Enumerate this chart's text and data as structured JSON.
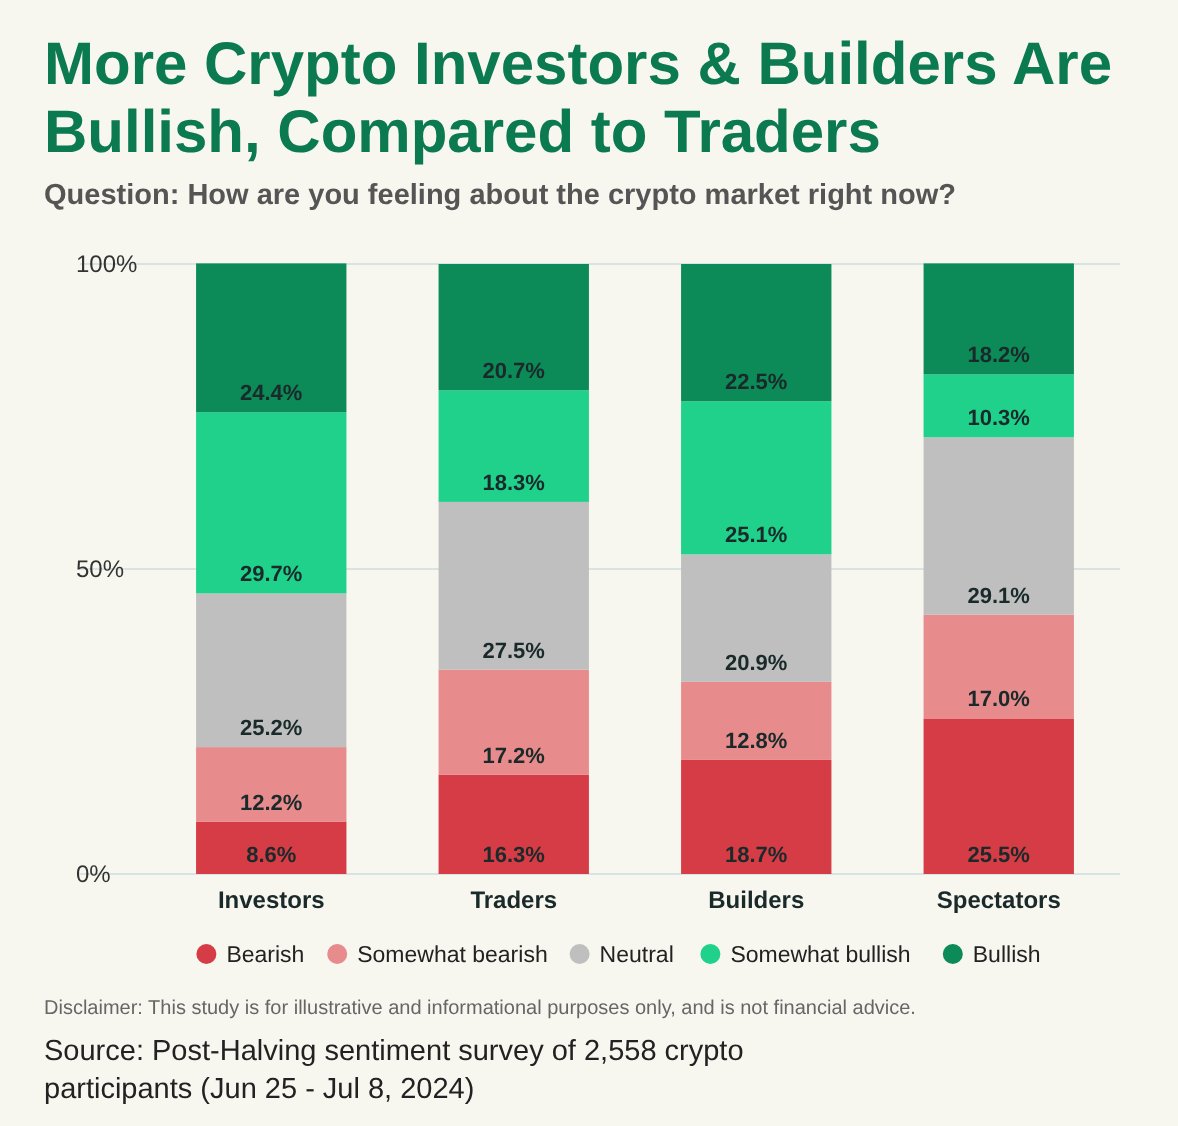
{
  "chart_data": {
    "type": "bar",
    "stacked": true,
    "title": "More Crypto Investors & Builders Are Bullish, Compared to Traders",
    "subtitle": "Question: How are you feeling about the crypto market right now?",
    "categories": [
      "Investors",
      "Traders",
      "Builders",
      "Spectators"
    ],
    "series": [
      {
        "name": "Bearish",
        "color": "#d63c46",
        "values": [
          8.6,
          16.3,
          18.7,
          25.5
        ],
        "value_labels": [
          "8.6%",
          "16.3%",
          "18.7%",
          "25.5%"
        ]
      },
      {
        "name": "Somewhat bearish",
        "color": "#e88b8d",
        "values": [
          12.2,
          17.2,
          12.8,
          17.0
        ],
        "value_labels": [
          "12.2%",
          "17.2%",
          "12.8%",
          "17.0%"
        ]
      },
      {
        "name": "Neutral",
        "color": "#bfbfbf",
        "values": [
          25.2,
          27.5,
          20.9,
          29.1
        ],
        "value_labels": [
          "25.2%",
          "27.5%",
          "20.9%",
          "29.1%"
        ]
      },
      {
        "name": "Somewhat bullish",
        "color": "#1fd18b",
        "values": [
          29.7,
          18.3,
          25.1,
          10.3
        ],
        "value_labels": [
          "29.7%",
          "18.3%",
          "25.1%",
          "10.3%"
        ]
      },
      {
        "name": "Bullish",
        "color": "#0c8a58",
        "values": [
          24.4,
          20.7,
          22.5,
          18.2
        ],
        "value_labels": [
          "24.4%",
          "20.7%",
          "22.5%",
          "18.2%"
        ]
      }
    ],
    "ylim": [
      0,
      100
    ],
    "yticks": [
      {
        "value": 0,
        "label": "0%"
      },
      {
        "value": 50,
        "label": "50%"
      },
      {
        "value": 100,
        "label": "100%"
      }
    ],
    "grid": "y",
    "legend": "bottom",
    "annotations": [
      "Disclaimer: This study is for illustrative and informational purposes only, and is not financial advice.",
      "Source: Post-Halving sentiment survey of 2,558 crypto participants (Jun 25 - Jul 8, 2024)"
    ]
  }
}
